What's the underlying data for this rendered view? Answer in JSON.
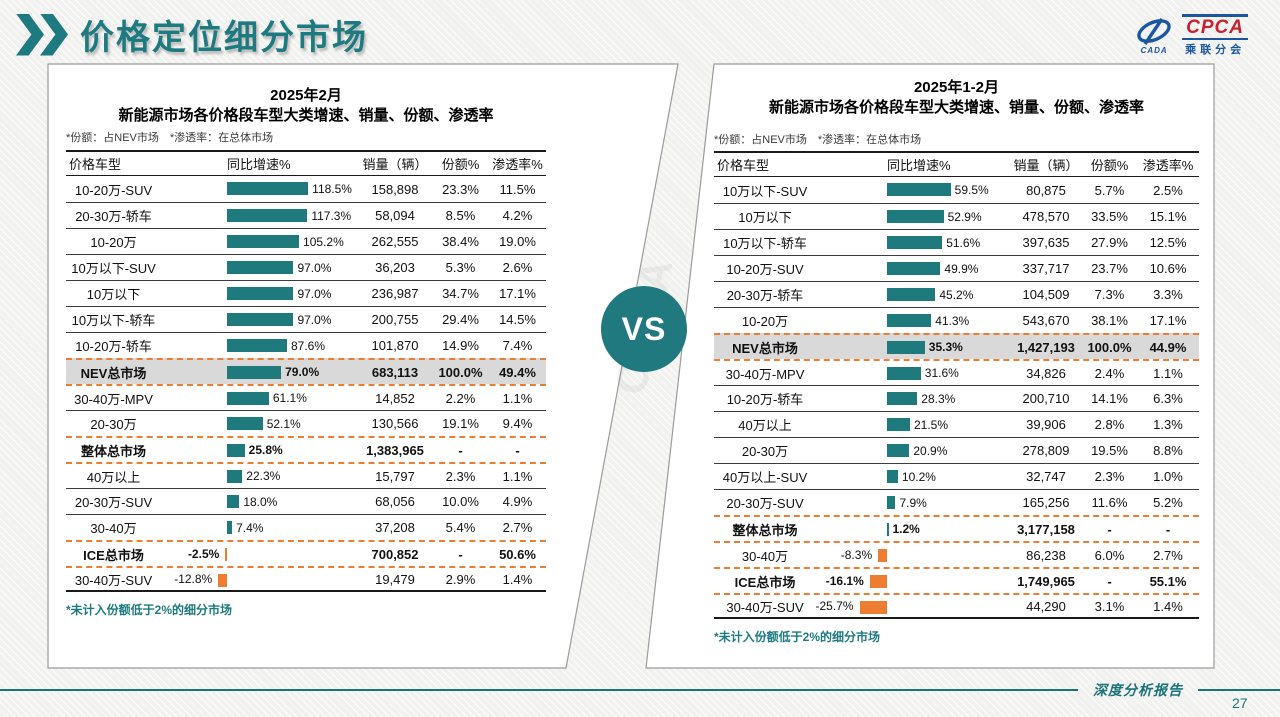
{
  "header": {
    "title": "价格定位细分市场",
    "logo": {
      "cada_label": "CADA",
      "cpca_label": "CPCA",
      "subtitle": "乘联分会"
    }
  },
  "vs_label": "VS",
  "watermark": "CPCA",
  "footer": {
    "report_label": "深度分析报告",
    "page_number": "27"
  },
  "colors": {
    "teal_bar": "#1f7a7d",
    "orange_bar": "#ed7d31",
    "highlight_row": "#d9d9d9",
    "dashed_border": "#ed7d31",
    "accent_teal": "#1d7a80"
  },
  "chart_data": [
    {
      "type": "table",
      "title_line1": "2025年2月",
      "title_line2": "新能源市场各价格段车型大类增速、销量、份额、渗透率",
      "note": "*份额：占NEV市场　*渗透率：在总体市场",
      "columns": [
        "价格车型",
        "同比增速%",
        "销量（辆）",
        "份额%",
        "渗透率%"
      ],
      "footnote": "*未计入份额低于2%的细分市场",
      "rows": [
        {
          "label": "10-20万-SUV",
          "growth": 118.5,
          "growth_label": "118.5%",
          "sales": "158,898",
          "share": "23.3%",
          "penetration": "11.5%"
        },
        {
          "label": "20-30万-轿车",
          "growth": 117.3,
          "growth_label": "117.3%",
          "sales": "58,094",
          "share": "8.5%",
          "penetration": "4.2%"
        },
        {
          "label": "10-20万",
          "growth": 105.2,
          "growth_label": "105.2%",
          "sales": "262,555",
          "share": "38.4%",
          "penetration": "19.0%"
        },
        {
          "label": "10万以下-SUV",
          "growth": 97.0,
          "growth_label": "97.0%",
          "sales": "36,203",
          "share": "5.3%",
          "penetration": "2.6%"
        },
        {
          "label": "10万以下",
          "growth": 97.0,
          "growth_label": "97.0%",
          "sales": "236,987",
          "share": "34.7%",
          "penetration": "17.1%"
        },
        {
          "label": "10万以下-轿车",
          "growth": 97.0,
          "growth_label": "97.0%",
          "sales": "200,755",
          "share": "29.4%",
          "penetration": "14.5%"
        },
        {
          "label": "10-20万-轿车",
          "growth": 87.6,
          "growth_label": "87.6%",
          "sales": "101,870",
          "share": "14.9%",
          "penetration": "7.4%"
        },
        {
          "label": "NEV总市场",
          "growth": 79.0,
          "growth_label": "79.0%",
          "sales": "683,113",
          "share": "100.0%",
          "penetration": "49.4%",
          "bold": true,
          "highlight": true,
          "dashed": true
        },
        {
          "label": "30-40万-MPV",
          "growth": 61.1,
          "growth_label": "61.1%",
          "sales": "14,852",
          "share": "2.2%",
          "penetration": "1.1%"
        },
        {
          "label": "20-30万",
          "growth": 52.1,
          "growth_label": "52.1%",
          "sales": "130,566",
          "share": "19.1%",
          "penetration": "9.4%"
        },
        {
          "label": "整体总市场",
          "growth": 25.8,
          "growth_label": "25.8%",
          "sales": "1,383,965",
          "share": "-",
          "penetration": "-",
          "bold": true,
          "dashed": true
        },
        {
          "label": "40万以上",
          "growth": 22.3,
          "growth_label": "22.3%",
          "sales": "15,797",
          "share": "2.3%",
          "penetration": "1.1%"
        },
        {
          "label": "20-30万-SUV",
          "growth": 18.0,
          "growth_label": "18.0%",
          "sales": "68,056",
          "share": "10.0%",
          "penetration": "4.9%"
        },
        {
          "label": "30-40万",
          "growth": 7.4,
          "growth_label": "7.4%",
          "sales": "37,208",
          "share": "5.4%",
          "penetration": "2.7%"
        },
        {
          "label": "ICE总市场",
          "growth": -2.5,
          "growth_label": "-2.5%",
          "sales": "700,852",
          "share": "-",
          "penetration": "50.6%",
          "bold": true,
          "dashed": true
        },
        {
          "label": "30-40万-SUV",
          "growth": -12.8,
          "growth_label": "-12.8%",
          "sales": "19,479",
          "share": "2.9%",
          "penetration": "1.4%"
        }
      ]
    },
    {
      "type": "table",
      "title_line1": "2025年1-2月",
      "title_line2": "新能源市场各价格段车型大类增速、销量、份额、渗透率",
      "note": "*份额：占NEV市场　*渗透率：在总体市场",
      "columns": [
        "价格车型",
        "同比增速%",
        "销量（辆）",
        "份额%",
        "渗透率%"
      ],
      "footnote": "*未计入份额低于2%的细分市场",
      "rows": [
        {
          "label": "10万以下-SUV",
          "growth": 59.5,
          "growth_label": "59.5%",
          "sales": "80,875",
          "share": "5.7%",
          "penetration": "2.5%"
        },
        {
          "label": "10万以下",
          "growth": 52.9,
          "growth_label": "52.9%",
          "sales": "478,570",
          "share": "33.5%",
          "penetration": "15.1%"
        },
        {
          "label": "10万以下-轿车",
          "growth": 51.6,
          "growth_label": "51.6%",
          "sales": "397,635",
          "share": "27.9%",
          "penetration": "12.5%"
        },
        {
          "label": "10-20万-SUV",
          "growth": 49.9,
          "growth_label": "49.9%",
          "sales": "337,717",
          "share": "23.7%",
          "penetration": "10.6%"
        },
        {
          "label": "20-30万-轿车",
          "growth": 45.2,
          "growth_label": "45.2%",
          "sales": "104,509",
          "share": "7.3%",
          "penetration": "3.3%"
        },
        {
          "label": "10-20万",
          "growth": 41.3,
          "growth_label": "41.3%",
          "sales": "543,670",
          "share": "38.1%",
          "penetration": "17.1%"
        },
        {
          "label": "NEV总市场",
          "growth": 35.3,
          "growth_label": "35.3%",
          "sales": "1,427,193",
          "share": "100.0%",
          "penetration": "44.9%",
          "bold": true,
          "highlight": true,
          "dashed": true
        },
        {
          "label": "30-40万-MPV",
          "growth": 31.6,
          "growth_label": "31.6%",
          "sales": "34,826",
          "share": "2.4%",
          "penetration": "1.1%"
        },
        {
          "label": "10-20万-轿车",
          "growth": 28.3,
          "growth_label": "28.3%",
          "sales": "200,710",
          "share": "14.1%",
          "penetration": "6.3%"
        },
        {
          "label": "40万以上",
          "growth": 21.5,
          "growth_label": "21.5%",
          "sales": "39,906",
          "share": "2.8%",
          "penetration": "1.3%"
        },
        {
          "label": "20-30万",
          "growth": 20.9,
          "growth_label": "20.9%",
          "sales": "278,809",
          "share": "19.5%",
          "penetration": "8.8%"
        },
        {
          "label": "40万以上-SUV",
          "growth": 10.2,
          "growth_label": "10.2%",
          "sales": "32,747",
          "share": "2.3%",
          "penetration": "1.0%"
        },
        {
          "label": "20-30万-SUV",
          "growth": 7.9,
          "growth_label": "7.9%",
          "sales": "165,256",
          "share": "11.6%",
          "penetration": "5.2%"
        },
        {
          "label": "整体总市场",
          "growth": 1.2,
          "growth_label": "1.2%",
          "sales": "3,177,158",
          "share": "-",
          "penetration": "-",
          "bold": true,
          "dashed": true
        },
        {
          "label": "30-40万",
          "growth": -8.3,
          "growth_label": "-8.3%",
          "sales": "86,238",
          "share": "6.0%",
          "penetration": "2.7%"
        },
        {
          "label": "ICE总市场",
          "growth": -16.1,
          "growth_label": "-16.1%",
          "sales": "1,749,965",
          "share": "-",
          "penetration": "55.1%",
          "bold": true,
          "dashed": true
        },
        {
          "label": "30-40万-SUV",
          "growth": -25.7,
          "growth_label": "-25.7%",
          "sales": "44,290",
          "share": "3.1%",
          "penetration": "1.4%"
        }
      ]
    }
  ]
}
